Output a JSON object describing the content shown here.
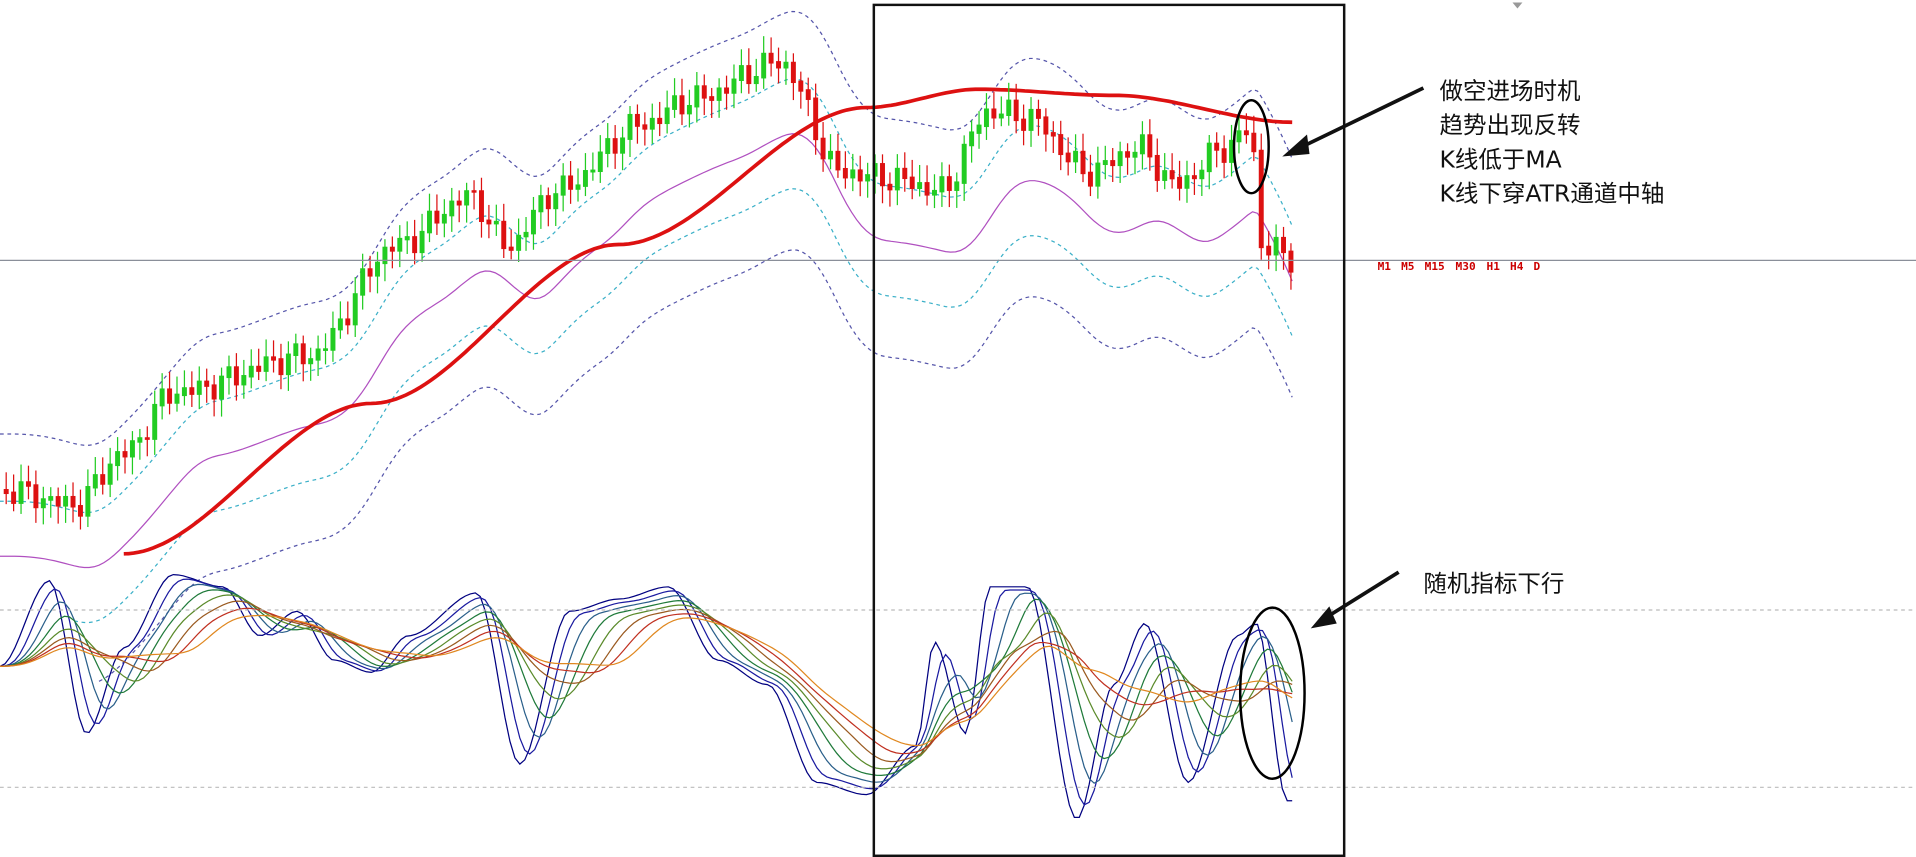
{
  "annotations": {
    "entry": [
      "做空进场时机",
      "趋势出现反转",
      "K线低于MA",
      "K线下穿ATR通道中轴"
    ],
    "stochastic": "随机指标下行"
  },
  "timeframes": [
    "M1",
    "M5",
    "M15",
    "M30",
    "H1",
    "H4",
    "D"
  ]
}
